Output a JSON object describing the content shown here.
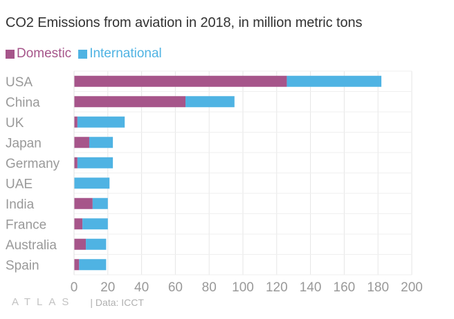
{
  "colors": {
    "domestic": "#a6558a",
    "international": "#4fb3e3"
  },
  "chart_data": {
    "type": "bar",
    "orientation": "horizontal",
    "stacked": true,
    "title": "CO2 Emissions from aviation in 2018, in million metric tons",
    "categories": [
      "USA",
      "China",
      "UK",
      "Japan",
      "Germany",
      "UAE",
      "India",
      "France",
      "Australia",
      "Spain"
    ],
    "series": [
      {
        "name": "Domestic",
        "color": "#a6558a",
        "values": [
          126,
          66,
          2,
          9,
          2,
          0,
          11,
          5,
          7,
          3
        ]
      },
      {
        "name": "International",
        "color": "#4fb3e3",
        "values": [
          56,
          29,
          28,
          14,
          21,
          21,
          9,
          15,
          12,
          16
        ]
      }
    ],
    "xlim": [
      0,
      200
    ],
    "xticks": [
      "0",
      "20",
      "40",
      "60",
      "80",
      "100",
      "120",
      "140",
      "160",
      "180",
      "200"
    ],
    "grid": true,
    "legend_position": "top-left"
  },
  "footer": {
    "logo": "ATLAS",
    "source": "| Data: ICCT"
  }
}
